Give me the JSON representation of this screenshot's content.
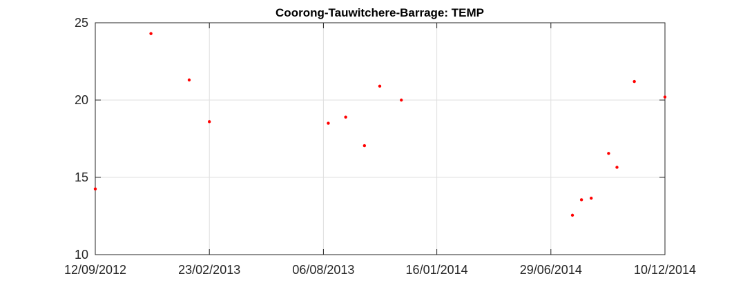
{
  "chart_data": {
    "type": "scatter",
    "title": "Coorong-Tauwitchere-Barrage: TEMP",
    "xlabel": "",
    "ylabel": "",
    "x_type": "date",
    "xlim": [
      "2012-09-12",
      "2014-12-10"
    ],
    "ylim": [
      10,
      25
    ],
    "x_ticks": [
      "12/09/2012",
      "23/02/2013",
      "06/08/2013",
      "16/01/2014",
      "29/06/2014",
      "10/12/2014"
    ],
    "y_ticks": [
      10,
      15,
      20,
      25
    ],
    "grid": true,
    "marker_color": "#ff0000",
    "points": [
      {
        "x": "2012-09-12",
        "y": 14.25
      },
      {
        "x": "2012-12-01",
        "y": 24.3
      },
      {
        "x": "2013-01-25",
        "y": 21.3
      },
      {
        "x": "2013-02-23",
        "y": 18.6
      },
      {
        "x": "2013-08-13",
        "y": 18.5
      },
      {
        "x": "2013-09-07",
        "y": 18.9
      },
      {
        "x": "2013-10-04",
        "y": 17.05
      },
      {
        "x": "2013-10-26",
        "y": 20.9
      },
      {
        "x": "2013-11-26",
        "y": 20.0
      },
      {
        "x": "2014-07-30",
        "y": 12.55
      },
      {
        "x": "2014-08-12",
        "y": 13.55
      },
      {
        "x": "2014-08-26",
        "y": 13.65
      },
      {
        "x": "2014-09-20",
        "y": 16.55
      },
      {
        "x": "2014-10-02",
        "y": 15.65
      },
      {
        "x": "2014-10-27",
        "y": 21.2
      },
      {
        "x": "2014-12-10",
        "y": 20.2
      }
    ]
  }
}
